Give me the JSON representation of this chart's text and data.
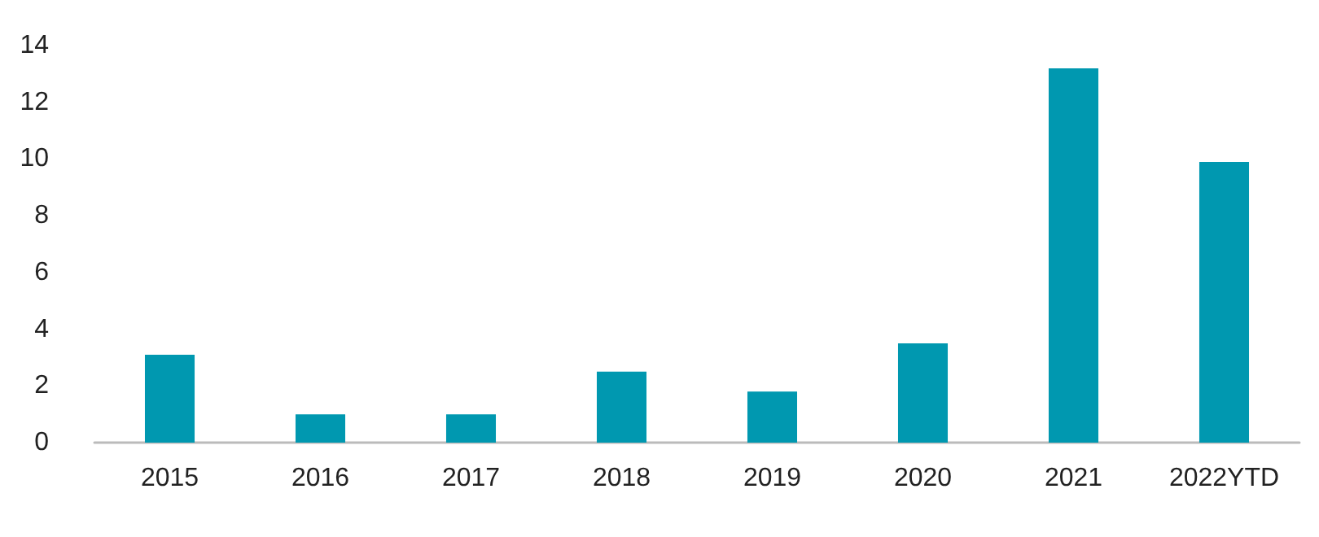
{
  "chart_data": {
    "type": "bar",
    "categories": [
      "2015",
      "2016",
      "2017",
      "2018",
      "2019",
      "2020",
      "2021",
      "2022YTD"
    ],
    "values": [
      3.1,
      1.0,
      1.0,
      2.5,
      1.8,
      3.5,
      13.2,
      9.9
    ],
    "color": "#0098b0",
    "ylim": [
      0,
      14
    ],
    "yticks": [
      0,
      2,
      4,
      6,
      8,
      10,
      12,
      14
    ],
    "grid": false
  }
}
